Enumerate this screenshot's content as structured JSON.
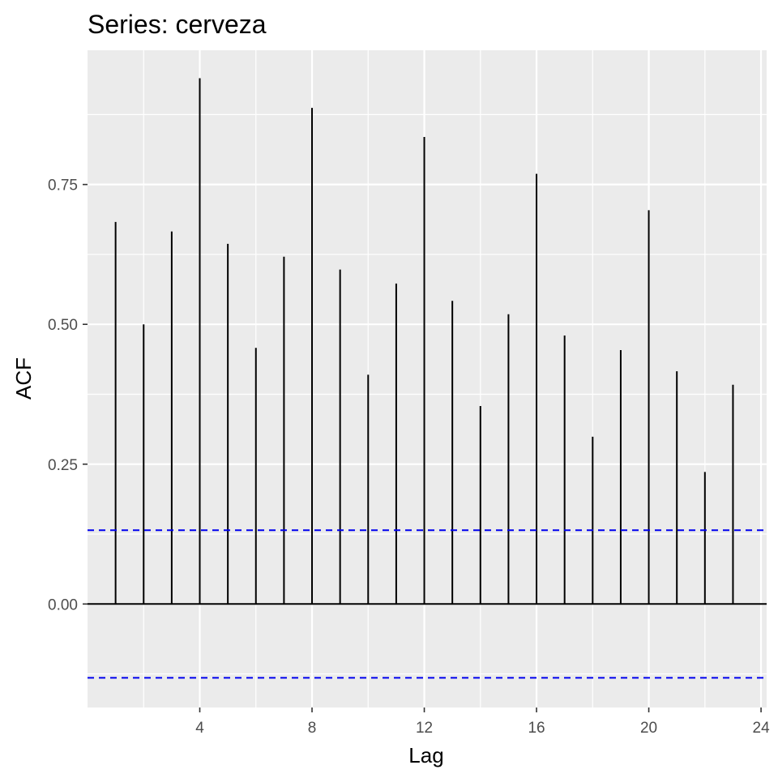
{
  "chart_data": {
    "type": "bar",
    "title": "Series: cerveza",
    "xlabel": "Lag",
    "ylabel": "ACF",
    "x": [
      1,
      2,
      3,
      4,
      5,
      6,
      7,
      8,
      9,
      10,
      11,
      12,
      13,
      14,
      15,
      16,
      17,
      18,
      19,
      20,
      21,
      22,
      23
    ],
    "values": [
      0.683,
      0.5,
      0.666,
      0.94,
      0.644,
      0.458,
      0.621,
      0.887,
      0.598,
      0.41,
      0.573,
      0.835,
      0.542,
      0.354,
      0.518,
      0.769,
      0.48,
      0.299,
      0.454,
      0.704,
      0.416,
      0.236,
      0.392
    ],
    "confidence_bound": 0.132,
    "xlim": [
      0,
      24.2
    ],
    "ylim": [
      -0.185,
      0.99
    ],
    "x_ticks": [
      4,
      8,
      12,
      16,
      20,
      24
    ],
    "x_tick_labels": [
      "4",
      "8",
      "12",
      "16",
      "20",
      "24"
    ],
    "y_ticks": [
      0,
      0.25,
      0.5,
      0.75
    ],
    "y_tick_labels": [
      "0.00",
      "0.25",
      "0.50",
      "0.75"
    ],
    "grid": true,
    "legend": "none",
    "colors": {
      "panel_background": "#ebebeb",
      "grid": "#ffffff",
      "bars": "#000000",
      "confidence_line": "#0000ee"
    }
  }
}
